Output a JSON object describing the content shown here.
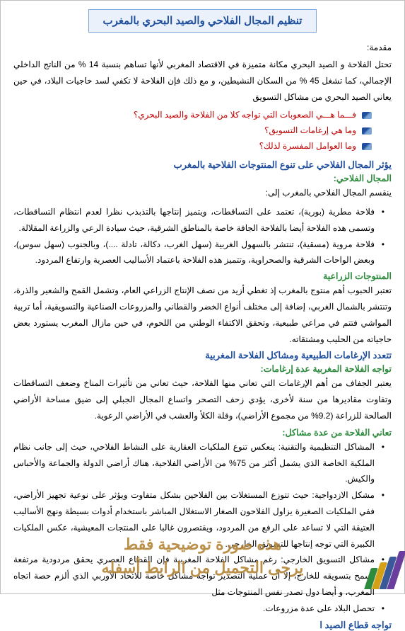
{
  "colors": {
    "title_text": "#1f4e9c",
    "title_bg": "#eaf1fa",
    "title_border": "#7aa5d6",
    "heading_blue": "#1f4e9c",
    "heading_green": "#2e8b3d",
    "question_red": "#c00000",
    "body_text": "#000000",
    "watermark": "#b07d2a",
    "page_border": "#c0c0c0",
    "badge": [
      "#6a3e9c",
      "#3b5998",
      "#d4a017",
      "#2e8b3d"
    ]
  },
  "title": "تنظيم المجال الفلاحي والصيد البحري بالمغرب",
  "intro_label": "مقدمة:",
  "intro_para": "تحتل الفلاحة و الصيد البحري مكانة متميزة في الاقتصاد المغربي لأنها تساهم بنسبة 14 % من الناتج الداخلي الإجمالي، كما تشغل 45 % من السكان النشيطين، و مع ذلك فإن الفلاحة لا تكفي لسد حاجيات البلاد، في حين يعاني الصيد البحري من مشاكل التسويق",
  "questions": [
    "فـــما هـــي الصعوبات التي تواجه كلا من الفلاحة والصيد البحري؟",
    "وما هي إرغامات التسويق؟",
    "وما العوامل المفسرة لذلك؟"
  ],
  "h1": "يؤثر المجال الفلاحي على تنوع المنتوجات الفلاحية بالمغرب",
  "h1a": "المجال الفلاحي:",
  "h1a_intro": "ينقسم المجال الفلاحي بالمغرب إلى:",
  "h1a_items": [
    "فلاحة مطرية (بورية)، تعتمد على التساقطات، ويتميز إنتاجها بالتذبذب نظرا لعدم انتظام التساقطات، وتسمى هذه الفلاحة أيضا بالفلاحة الجافة خاصة بالمناطق الشرقية، حيث سيادة الرعي والزراعة المقلالة.",
    "فلاحة مروية (مسقية)، تنتشر بالسهول الغربية (سهل الغرب، دكالة، تادلة ....)، وبالجنوب (سهل سوس)، وبعض الواحات الشرقية والصحراوية، وتتميز هذه الفلاحة باعتماد الأساليب العصرية وارتفاع المردود."
  ],
  "h1b": "المنتوجات الزراعية",
  "h1b_para": "تعتبر الحبوب أهم منتوج بالمغرب إذ تغطي أزيد من نصف الإنتاج الزراعي العام، وتشمل القمح والشعير والذرة، وتنتشر بالشمال الغربي، إضافة إلى مختلف أنواع الخضر والقطاني والمزروعات الصناعية والتسويقية، أما تربية المواشي فتتم في مراعي طبيعية، وتحقق الاكتفاء الوطني من اللحوم، في حين مازال المغرب يستورد بعض حاجياته من الحليب ومشتقاته.",
  "h2": "تتعدد الإرغامات الطبيعية ومشاكل الفلاحة المغربية",
  "h2a": "تواجه الفلاحة المغربية عدة إرغامات:",
  "h2a_para": "يعتبر الجفاف من أهم الإرغامات التي تعاني منها الفلاحة، حيث تعاني من تأثيرات المناخ وضعف التساقطات وتفاوت مقاديرها من سنة لأخرى، يؤدي زحف التصحر واتساع المجال الجبلي إلى ضيق مساحة الأراضي الصالحة للزراعة (9.2% من مجموع الأراضي)، وقلة الكلأ والعشب في الأراضي الرعوية.",
  "h2b": "تعاني الفلاحة من عدة مشاكل:",
  "h2b_items": [
    "المشاكل التنظيمية والتقنية: ينعكس تنوع الملكيات العقارية على النشاط الفلاحي، حيث إلى جانب نظام الملكية الخاصة الذي يشمل أكثر من 75% من الأراضي الفلاحية، هناك أراضي الدولة والجماعة والأحباس والكيش.",
    "مشكل الازدواجية: حيث تتوزع المستغلات بين الفلاحين بشكل متفاوت ويؤثر على نوعية تجهيز الأراضي، ففي الملكيات الصغيرة يزاول الفلاحون الصغار الاستغلال المباشر باستخدام أدوات بسيطة ونهج الأساليب العتيقة التي لا تساعد على الرفع من المردود، ويقتصرون غالبا على المنتجات المعيشية، عكس الملكيات الكبيرة التي توجه إنتاجها للتسويق الخارجي.",
    "مشاكل التسويق الخارجي: رغم مشاكل الفلاحة المغربية فإن القطاع العصري يحقق مردودية مرتفعة تسمح بتسويقه للخارج، إلا أن عملية التصدير تواجه مشاكل خاصة للاتحاد الأوربي الذي ألزم حصة اتجاه المغرب، و أيضا دول تصدر نفس المنتوجات مثل",
    "تحصل البلاد على عدة مزروعات."
  ],
  "h3": "تواجه قطاع الصيد ا",
  "watermark": {
    "line1": "هذه صورة توضيحية فقط",
    "line2": "يرجى التحميل من الرابط أسفله"
  }
}
